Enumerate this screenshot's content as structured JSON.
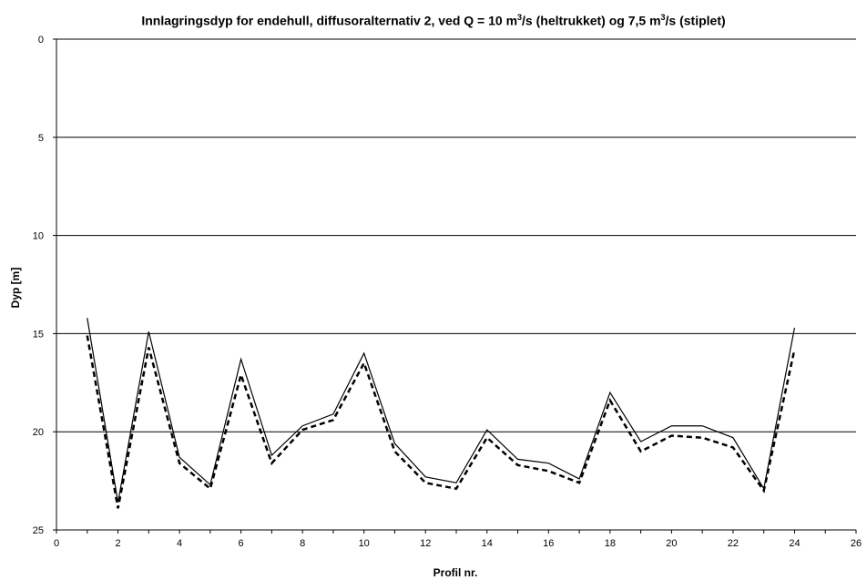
{
  "chart_data": {
    "type": "line",
    "title": {
      "part1": "Innlagringsdyp for endehull, diffusoralternativ 2, ved Q = 10 m",
      "sup1": "3",
      "part2": "/s (heltrukket) og 7,5 m",
      "sup2": "3",
      "part3": "/s (stiplet)"
    },
    "xlabel": "Profil nr.",
    "ylabel": "Dyp [m]",
    "xlim": [
      0,
      26
    ],
    "ylim": [
      0,
      25
    ],
    "y_inverted": true,
    "x_ticks": [
      0,
      2,
      4,
      6,
      8,
      10,
      12,
      14,
      16,
      18,
      20,
      22,
      24,
      26
    ],
    "y_ticks": [
      0,
      5,
      10,
      15,
      20,
      25
    ],
    "grid": "horizontal",
    "legend": "none",
    "x": [
      1,
      2,
      3,
      4,
      5,
      6,
      7,
      8,
      9,
      10,
      11,
      12,
      13,
      14,
      15,
      16,
      17,
      18,
      19,
      20,
      21,
      22,
      23,
      24
    ],
    "series": [
      {
        "style": "solid",
        "color": "#000000",
        "values": [
          14.2,
          23.6,
          14.9,
          21.3,
          22.7,
          16.3,
          21.2,
          19.7,
          19.1,
          16.0,
          20.6,
          22.3,
          22.6,
          19.9,
          21.4,
          21.6,
          22.4,
          18.0,
          20.5,
          19.7,
          19.7,
          20.3,
          22.9,
          14.7
        ]
      },
      {
        "style": "dashed",
        "color": "#000000",
        "values": [
          15.1,
          23.9,
          15.7,
          21.6,
          22.9,
          17.1,
          21.6,
          19.9,
          19.4,
          16.5,
          21.0,
          22.6,
          22.9,
          20.3,
          21.7,
          22.0,
          22.6,
          18.4,
          21.0,
          20.2,
          20.3,
          20.8,
          23.0,
          15.8
        ]
      }
    ]
  }
}
